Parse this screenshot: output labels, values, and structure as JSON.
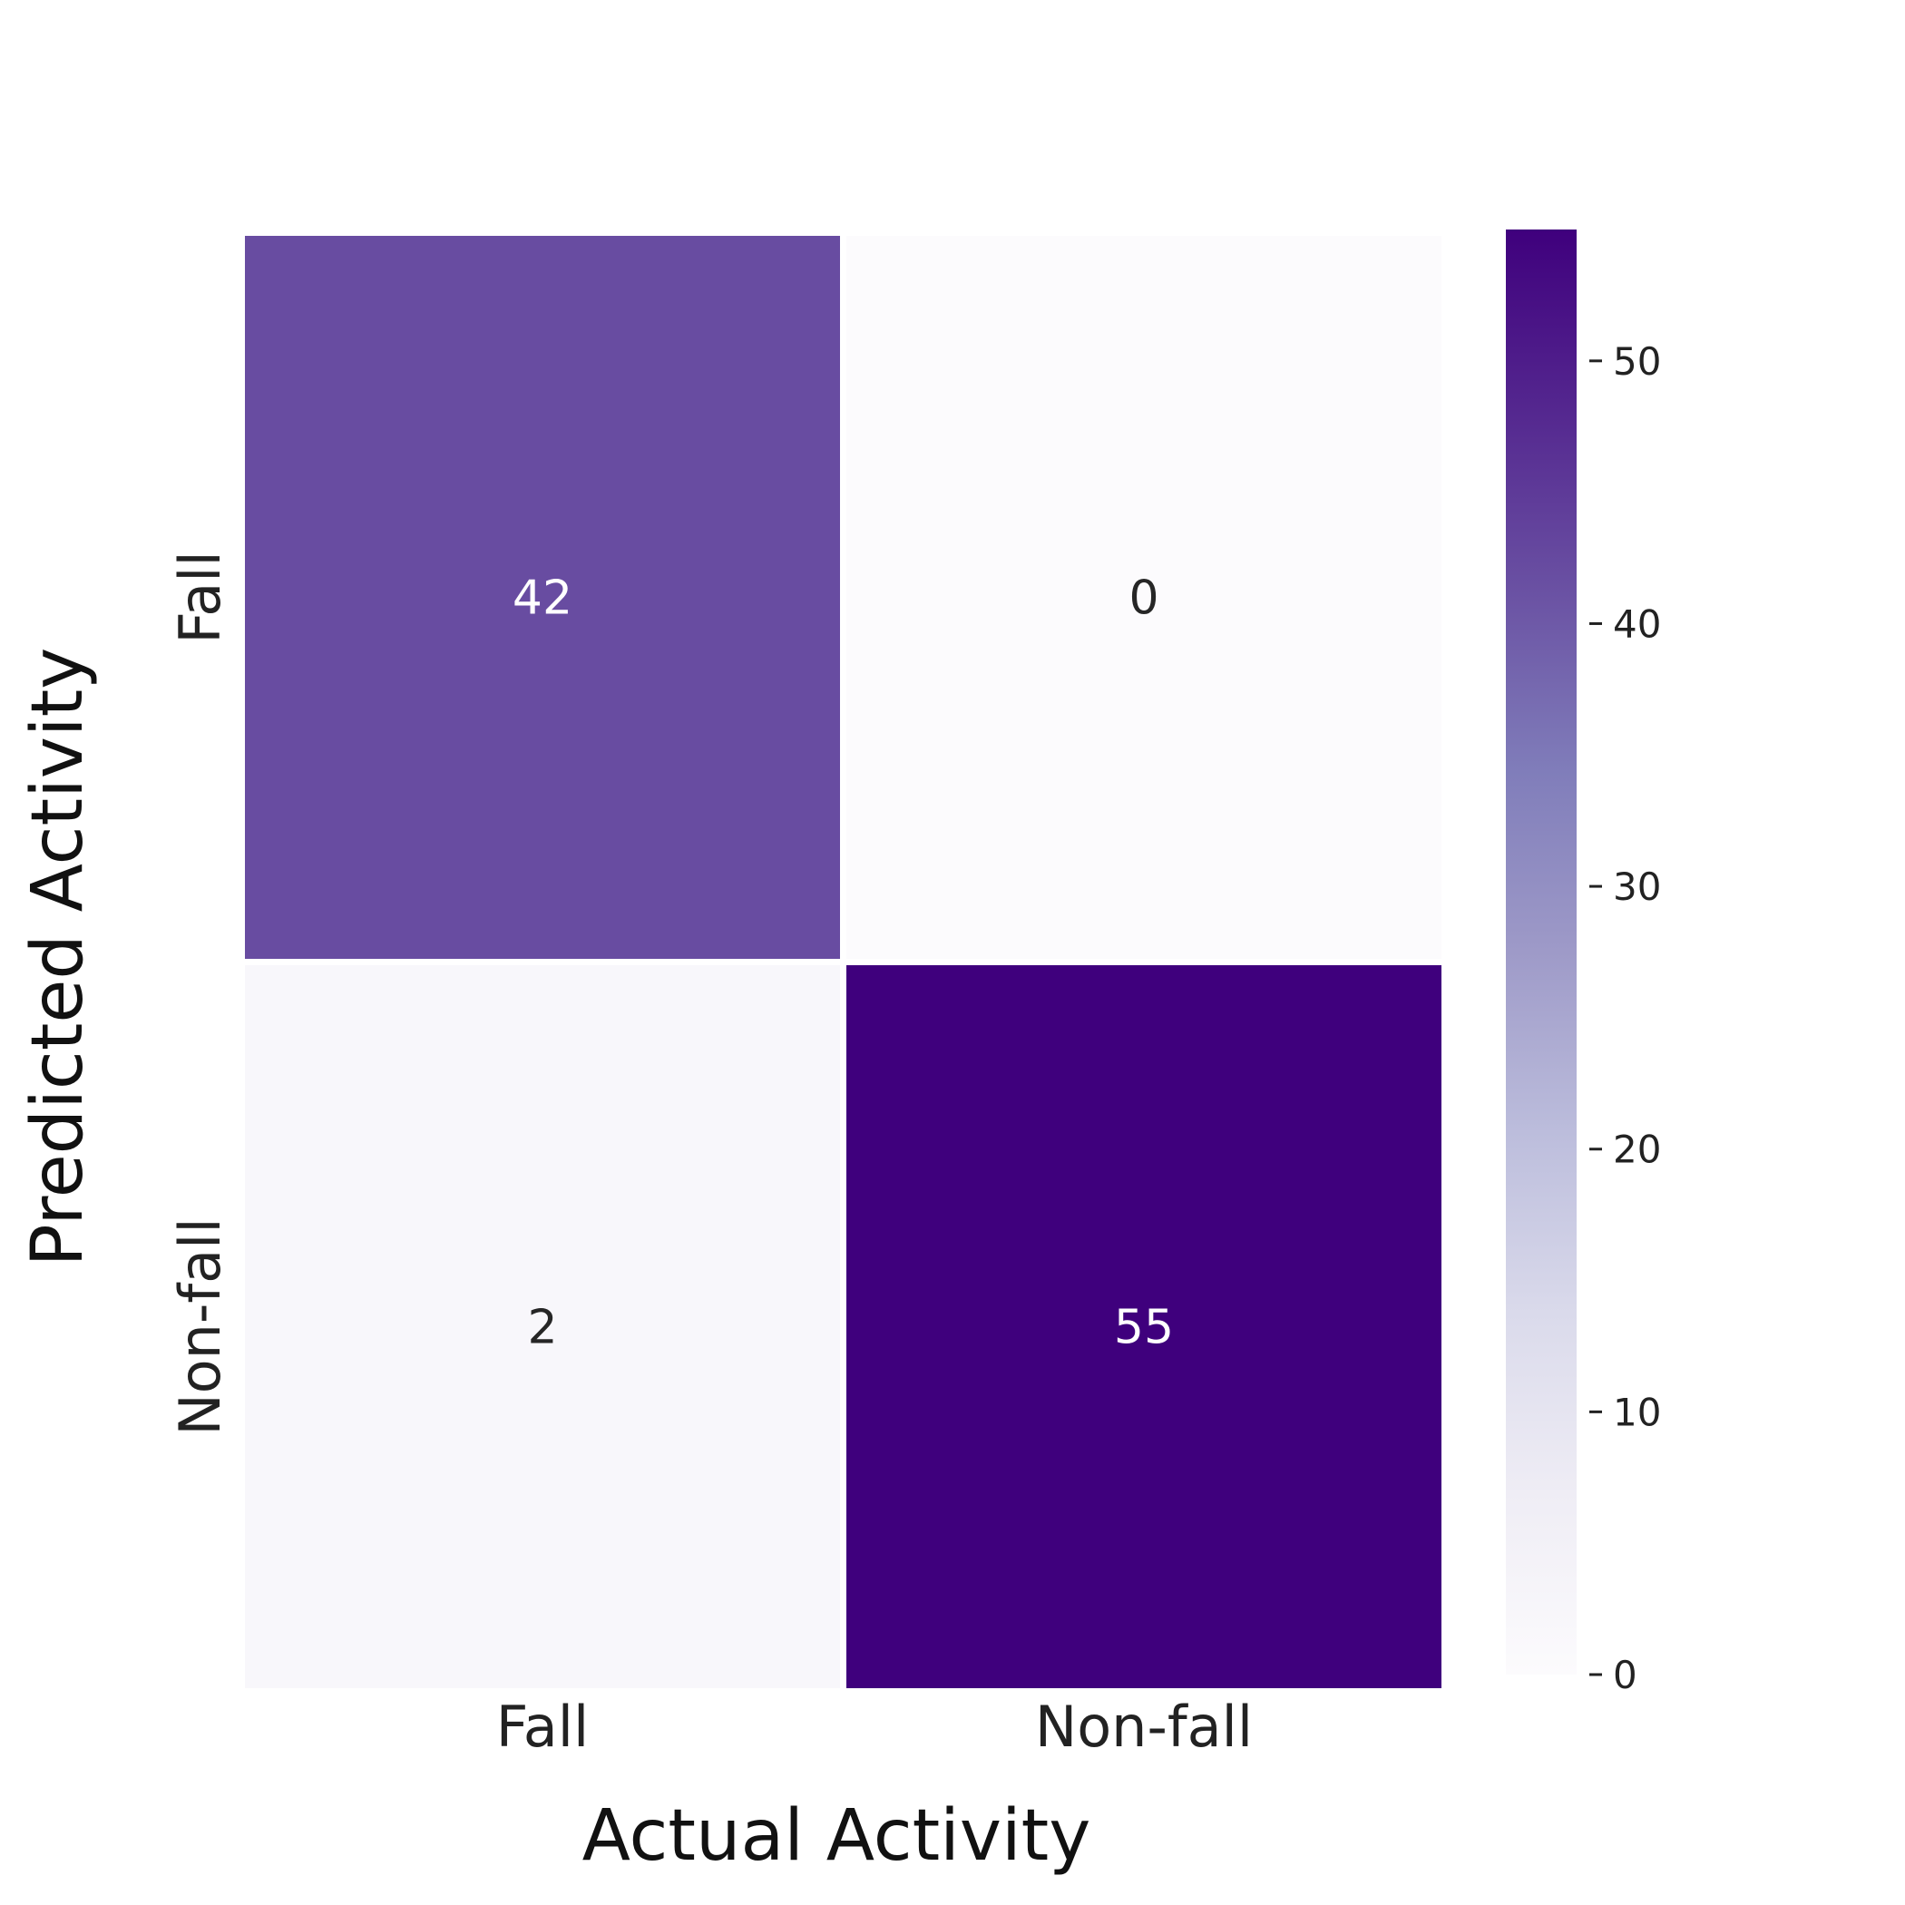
{
  "chart_data": {
    "type": "heatmap",
    "x_categories": [
      "Fall",
      "Non-fall"
    ],
    "y_categories": [
      "Fall",
      "Non-fall"
    ],
    "values": [
      [
        42,
        0
      ],
      [
        2,
        55
      ]
    ],
    "xlabel": "Actual Activity",
    "ylabel": "Predicted Activity",
    "colorbar": {
      "min": 0,
      "max": 55,
      "ticks": [
        0,
        10,
        20,
        30,
        40,
        50
      ],
      "colormap": "Purples",
      "colors": [
        "#fcfbfd",
        "#efedf5",
        "#dadaeb",
        "#bcbddc",
        "#9e9ac8",
        "#807dba",
        "#6a51a3",
        "#54278f",
        "#3f007d"
      ]
    },
    "grid": false,
    "legend": "colorbar-right"
  }
}
